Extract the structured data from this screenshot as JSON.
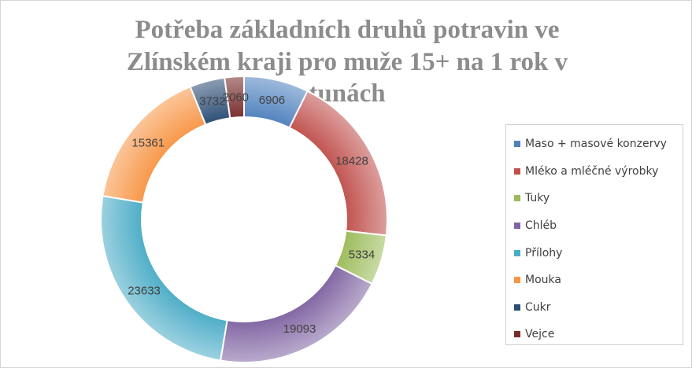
{
  "chart_data": {
    "type": "pie",
    "variant": "doughnut",
    "title": "Potřeba základních druhů potravin ve Zlínském kraji pro muže 15+ na 1 rok v tunách",
    "title_lines": [
      "Potřeba základních druhů potravin ve",
      "Zlínském kraji pro muže 15+ na 1 rok v",
      "tunách"
    ],
    "categories": [
      "Maso + masové konzervy",
      "Mléko a mléčné výrobky",
      "Tuky",
      "Chléb",
      "Přílohy",
      "Mouka",
      "Cukr",
      "Vejce"
    ],
    "values": [
      6906,
      18428,
      5334,
      19093,
      23633,
      15361,
      3732,
      2060
    ],
    "colors": [
      "#4f81bd",
      "#c0504d",
      "#9bbb59",
      "#8064a2",
      "#4bacc6",
      "#f79646",
      "#2c4d75",
      "#772c2a"
    ],
    "data_labels": [
      "6906",
      "18428",
      "5334",
      "19093",
      "23633",
      "15361",
      "3732",
      "2060"
    ],
    "legend_position": "right",
    "units": "tuny"
  }
}
